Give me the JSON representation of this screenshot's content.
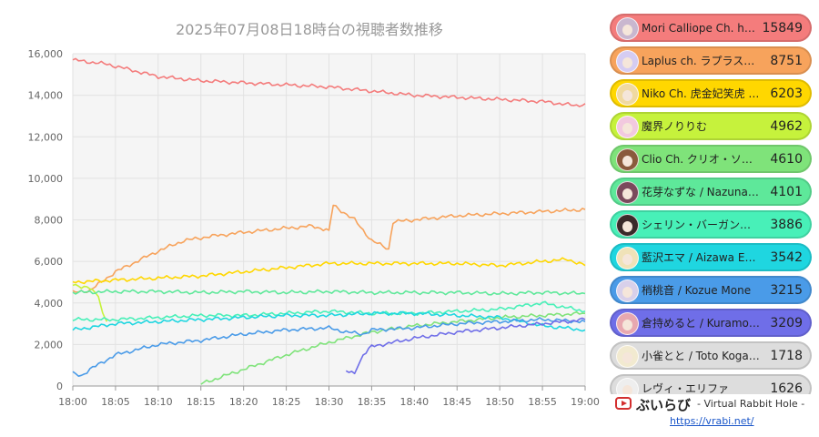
{
  "chart_data": {
    "type": "line",
    "title": "2025年07月08日18時台の視聴者数推移",
    "xlabel": "",
    "ylabel": "",
    "x_ticks": [
      "18:00",
      "18:05",
      "18:10",
      "18:15",
      "18:20",
      "18:25",
      "18:30",
      "18:35",
      "18:40",
      "18:45",
      "18:50",
      "18:55",
      "19:00"
    ],
    "xlim": [
      "18:00",
      "19:00"
    ],
    "y_ticks": [
      "0",
      "2,000",
      "4,000",
      "6,000",
      "8,000",
      "10,000",
      "12,000",
      "14,000",
      "16,000"
    ],
    "ylim": [
      0,
      16000
    ],
    "grid": true,
    "series": [
      {
        "name": "Mori Calliope Ch. hololive-EN",
        "color": "#f47c7c",
        "x": [
          "18:00",
          "18:02",
          "18:04",
          "18:06",
          "18:10",
          "18:15",
          "18:20",
          "18:25",
          "18:30",
          "18:35",
          "18:40",
          "18:45",
          "18:50",
          "18:55",
          "18:59",
          "19:00"
        ],
        "y": [
          15700,
          15600,
          15500,
          15300,
          14900,
          14700,
          14600,
          14500,
          14400,
          14200,
          14000,
          13900,
          13800,
          13700,
          13500,
          13600
        ]
      },
      {
        "name": "Laplus ch. ラプラス・ダークネス - holoX -",
        "color": "#f7a35c",
        "x": [
          "18:00",
          "18:02",
          "18:03",
          "18:05",
          "18:07",
          "18:10",
          "18:13",
          "18:16",
          "18:20",
          "18:25",
          "18:28",
          "18:30",
          "18:30.5",
          "18:33",
          "18:35",
          "18:37",
          "18:37.5",
          "18:40",
          "18:45",
          "18:50",
          "18:55",
          "19:00"
        ],
        "y": [
          4500,
          4600,
          4900,
          5500,
          5900,
          6500,
          7000,
          7200,
          7400,
          7600,
          7700,
          7500,
          8700,
          8000,
          7000,
          6600,
          7900,
          8000,
          8200,
          8300,
          8400,
          8500
        ]
      },
      {
        "name": "Niko Ch. 虎金妃笑虎 - ReGLOSS -",
        "color": "#ffd700",
        "x": [
          "18:00",
          "18:05",
          "18:10",
          "18:15",
          "18:20",
          "18:25",
          "18:30",
          "18:35",
          "18:40",
          "18:45",
          "18:50",
          "18:55",
          "18:58",
          "19:00"
        ],
        "y": [
          5000,
          5100,
          5200,
          5300,
          5500,
          5700,
          5900,
          5900,
          5900,
          5900,
          5800,
          6000,
          6100,
          5800
        ]
      },
      {
        "name": "魔界ノりりむ",
        "color": "#c6f23c",
        "x": [
          "18:00",
          "18:02",
          "18:03",
          "18:03.5",
          "18:04"
        ],
        "y": [
          4900,
          4700,
          4300,
          3500,
          3100
        ]
      },
      {
        "name": "Clio Ch. クリオ・ソーダ",
        "color": "#7fe37a",
        "x": [
          "18:15",
          "18:20",
          "18:25",
          "18:30",
          "18:35",
          "18:40",
          "18:45",
          "18:50",
          "18:55",
          "19:00"
        ],
        "y": [
          100,
          800,
          1500,
          2100,
          2600,
          2900,
          3100,
          3300,
          3400,
          3500
        ]
      },
      {
        "name": "花芽なずな / Nazuna Kaga",
        "color": "#5ee89a",
        "x": [
          "18:00",
          "18:05",
          "18:10",
          "18:15",
          "18:20",
          "18:25",
          "18:30",
          "18:35",
          "18:40",
          "18:45",
          "18:50",
          "18:55",
          "19:00"
        ],
        "y": [
          4500,
          4550,
          4550,
          4500,
          4550,
          4500,
          4550,
          4500,
          4500,
          4500,
          4450,
          4500,
          4450
        ]
      },
      {
        "name": "シェリン・バーガンディ",
        "color": "#48f0b8",
        "x": [
          "18:00",
          "18:05",
          "18:10",
          "18:15",
          "18:20",
          "18:25",
          "18:30",
          "18:35",
          "18:40",
          "18:45",
          "18:50",
          "18:55",
          "19:00"
        ],
        "y": [
          3200,
          3200,
          3300,
          3400,
          3400,
          3500,
          3600,
          3500,
          3500,
          3600,
          3700,
          4000,
          3600
        ]
      },
      {
        "name": "藍沢エマ / Aizawa Ema",
        "color": "#1fd6e0",
        "x": [
          "18:00",
          "18:05",
          "18:10",
          "18:15",
          "18:20",
          "18:25",
          "18:30",
          "18:35",
          "18:40",
          "18:45",
          "18:50",
          "18:55",
          "19:00"
        ],
        "y": [
          2700,
          3000,
          3100,
          3200,
          3300,
          3400,
          3400,
          3500,
          3500,
          3400,
          3300,
          2900,
          2700
        ]
      },
      {
        "name": "梢桃音 / Kozue Mone",
        "color": "#4a9be8",
        "x": [
          "18:00",
          "18:01",
          "18:02",
          "18:05",
          "18:10",
          "18:15",
          "18:20",
          "18:25",
          "18:30",
          "18:32",
          "18:34",
          "18:35",
          "18:40",
          "18:45",
          "18:50",
          "18:55",
          "19:00"
        ],
        "y": [
          600,
          500,
          800,
          1500,
          2000,
          2200,
          2500,
          2700,
          2800,
          2600,
          2500,
          2700,
          2800,
          3000,
          3100,
          3200,
          3100
        ]
      },
      {
        "name": "倉持めると / Kuramochi Meruto",
        "color": "#6f6ee8",
        "x": [
          "18:32",
          "18:33",
          "18:34",
          "18:35",
          "18:40",
          "18:45",
          "18:50",
          "18:55",
          "19:00"
        ],
        "y": [
          700,
          600,
          1500,
          1900,
          2300,
          2600,
          2800,
          3000,
          3200
        ]
      }
    ]
  },
  "ranking": [
    {
      "name": "Mori Calliope Ch. hololive-EN",
      "count": "15849",
      "color": "#f47c7c",
      "avatar_bg": "#c9b7cf"
    },
    {
      "name": "Laplus ch. ラプラス・ダークネス - holoX -",
      "count": "8751",
      "color": "#f7a35c",
      "avatar_bg": "#d5ccf2"
    },
    {
      "name": "Niko Ch. 虎金妃笑虎 - ReGLOSS -",
      "count": "6203",
      "color": "#ffd700",
      "avatar_bg": "#f0d9a0"
    },
    {
      "name": "魔界ノりりむ",
      "count": "4962",
      "color": "#c6f23c",
      "avatar_bg": "#f2c9df"
    },
    {
      "name": "Clio Ch. クリオ・ソーダ",
      "count": "4610",
      "color": "#7fe37a",
      "avatar_bg": "#8a5a3c"
    },
    {
      "name": "花芽なずな / Nazuna Kaga",
      "count": "4101",
      "color": "#5ee89a",
      "avatar_bg": "#7a4a5c"
    },
    {
      "name": "シェリン・バーガンディ",
      "count": "3886",
      "color": "#48f0b8",
      "avatar_bg": "#3a2a2a"
    },
    {
      "name": "藍沢エマ / Aizawa Ema",
      "count": "3542",
      "color": "#1fd6e0",
      "avatar_bg": "#f0e2b8"
    },
    {
      "name": "梢桃音 / Kozue Mone",
      "count": "3215",
      "color": "#4a9be8",
      "avatar_bg": "#d8d0ea"
    },
    {
      "name": "倉持めると / Kuramochi Meruto",
      "count": "3209",
      "color": "#6f6ee8",
      "avatar_bg": "#e8a8b0"
    },
    {
      "name": "小雀とと / Toto Kogara",
      "count": "1718",
      "color": "#dddddd",
      "avatar_bg": "#f2ead0"
    },
    {
      "name": "レヴィ・エリファ",
      "count": "1626",
      "color": "#dddddd",
      "avatar_bg": "#eeeeee"
    }
  ],
  "brand": {
    "name": "ぶいらび",
    "subtitle": "- Virtual Rabbit Hole -",
    "url": "https://vrabi.net/",
    "icon": "youtube-play-icon"
  }
}
